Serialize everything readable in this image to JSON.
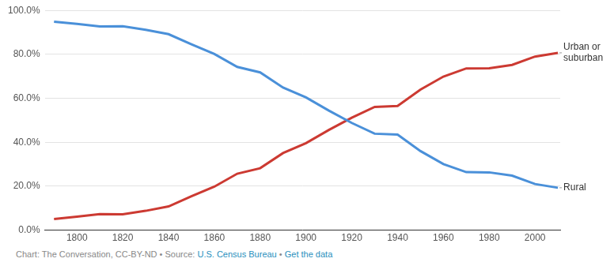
{
  "chart_data": {
    "type": "line",
    "x": [
      1790,
      1800,
      1810,
      1820,
      1830,
      1840,
      1850,
      1860,
      1870,
      1880,
      1890,
      1900,
      1910,
      1920,
      1930,
      1940,
      1950,
      1960,
      1970,
      1980,
      1990,
      2000,
      2010
    ],
    "series": [
      {
        "name": "Rural",
        "color": "#4a90d9",
        "values": [
          94.9,
          93.9,
          92.7,
          92.8,
          91.2,
          89.2,
          84.6,
          80.2,
          74.3,
          71.8,
          64.9,
          60.4,
          54.4,
          48.8,
          43.9,
          43.5,
          36.0,
          30.1,
          26.4,
          26.3,
          24.8,
          21.0,
          19.3
        ]
      },
      {
        "name": "Urban or suburban",
        "color": "#cc3a32",
        "values": [
          5.1,
          6.1,
          7.3,
          7.2,
          8.8,
          10.8,
          15.4,
          19.8,
          25.7,
          28.2,
          35.1,
          39.6,
          45.6,
          51.2,
          56.1,
          56.5,
          64.0,
          69.9,
          73.6,
          73.7,
          75.2,
          79.0,
          80.7
        ]
      }
    ],
    "xlim": [
      1786,
      2011
    ],
    "xticks": [
      1800,
      1820,
      1840,
      1860,
      1880,
      1900,
      1920,
      1940,
      1960,
      1980,
      2000
    ],
    "ylim": [
      0,
      100
    ],
    "yticks": [
      {
        "value": 0,
        "label": "0.0%"
      },
      {
        "value": 20,
        "label": "20.0%"
      },
      {
        "value": 40,
        "label": "40.0%"
      },
      {
        "value": 60,
        "label": "60.0%"
      },
      {
        "value": 80,
        "label": "80.0%"
      },
      {
        "value": 100,
        "label": "100.0%"
      }
    ],
    "grid": true,
    "marker": "none",
    "line_style": "solid"
  },
  "footer": {
    "parts": [
      {
        "text": "Chart: The Conversation, CC-BY-ND",
        "link": false
      },
      {
        "text": "Source:",
        "link": false
      },
      {
        "text": "U.S. Census Bureau",
        "link": true
      },
      {
        "text": "Get the data",
        "link": true
      }
    ],
    "separator": "•"
  }
}
